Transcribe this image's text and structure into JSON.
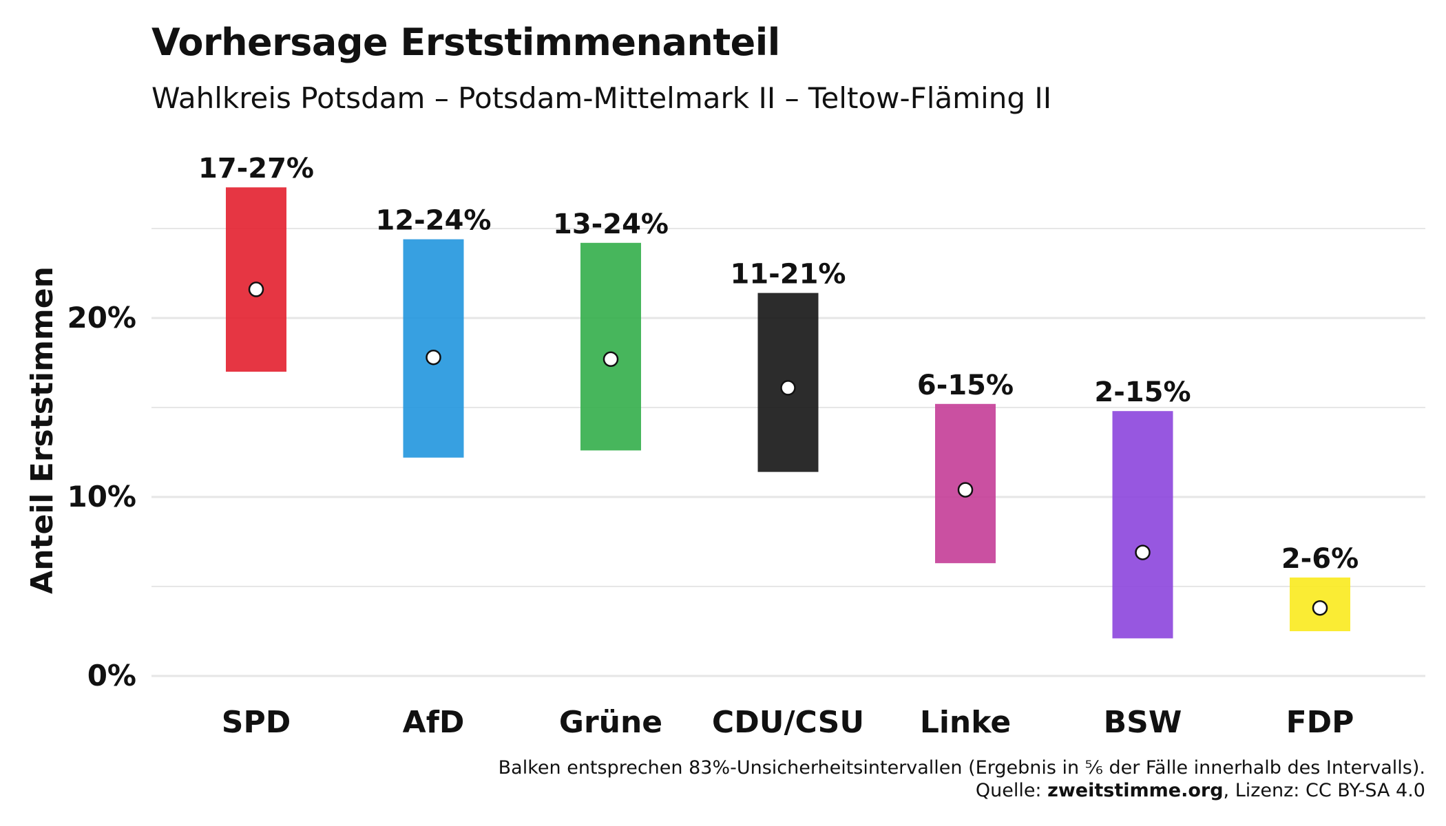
{
  "title": "Vorhersage Erststimmenanteil",
  "subtitle": "Wahlkreis Potsdam – Potsdam-Mittelmark II – Teltow-Fläming II",
  "caption_line1": "Balken entsprechen 83%-Unsicherheitsintervallen (Ergebnis in ⅚ der Fälle innerhalb des Intervalls).",
  "caption_source_label": "Quelle: ",
  "caption_source_name": "zweitstimme.org",
  "caption_license": ", Lizenz: CC BY-SA 4.0",
  "chart_data": {
    "type": "range-bar",
    "title": "Vorhersage Erststimmenanteil",
    "ylabel": "Anteil Erststimmen",
    "xlabel": "",
    "ylim": [
      0,
      27.5
    ],
    "yticks": [
      0,
      10,
      20
    ],
    "ytick_labels": [
      "0%",
      "10%",
      "20%"
    ],
    "grid": true,
    "categories": [
      "SPD",
      "AfD",
      "Grüne",
      "CDU/CSU",
      "Linke",
      "BSW",
      "FDP"
    ],
    "series": [
      {
        "party": "SPD",
        "low": 17.0,
        "high": 27.3,
        "point": 21.6,
        "label": "17-27%",
        "color": "#E3202F"
      },
      {
        "party": "AfD",
        "low": 12.2,
        "high": 24.4,
        "point": 17.8,
        "label": "12-24%",
        "color": "#2196DE"
      },
      {
        "party": "Grüne",
        "low": 12.6,
        "high": 24.2,
        "point": 17.7,
        "label": "13-24%",
        "color": "#33AE4A"
      },
      {
        "party": "CDU/CSU",
        "low": 11.4,
        "high": 21.4,
        "point": 16.1,
        "label": "11-21%",
        "color": "#151515"
      },
      {
        "party": "Linke",
        "low": 6.3,
        "high": 15.2,
        "point": 10.4,
        "label": "6-15%",
        "color": "#C43D97"
      },
      {
        "party": "BSW",
        "low": 2.1,
        "high": 14.8,
        "point": 6.9,
        "label": "2-15%",
        "color": "#8C45DD"
      },
      {
        "party": "FDP",
        "low": 2.5,
        "high": 5.5,
        "point": 3.8,
        "label": "2-6%",
        "color": "#FAEA1E"
      }
    ]
  }
}
